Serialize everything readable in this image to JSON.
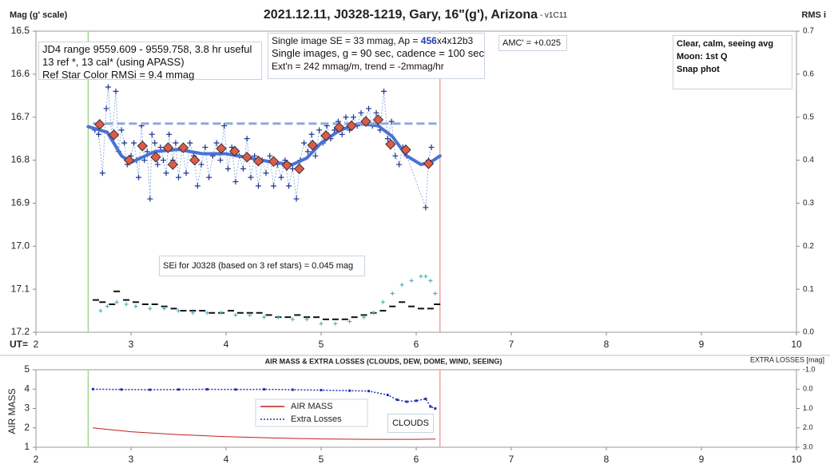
{
  "chart_data": [
    {
      "type": "line",
      "title": "2021.12.11, J0328-1219, Gary, 16\"(g'), Arizona",
      "subtitle": " - v1C11",
      "y_label": "Mag (g' scale)",
      "y2_label": "RMS i",
      "x_label": "UT=",
      "xlim": [
        2,
        10
      ],
      "xticks": [
        2,
        3,
        4,
        5,
        6,
        7,
        8,
        9,
        10
      ],
      "ylim": [
        17.2,
        16.5
      ],
      "yticks": [
        16.5,
        16.6,
        16.7,
        16.8,
        16.9,
        {
          "value": 17,
          "label": "17.0"
        },
        17.1,
        17.2
      ],
      "y2lim": [
        0,
        0.7
      ],
      "y2ticks": [
        0.7,
        0.6,
        0.5,
        0.4,
        0.3,
        0.2,
        0.1,
        {
          "value": 0,
          "label": "0.0"
        }
      ],
      "grid": false,
      "vlines": [
        {
          "x": 2.55,
          "color": "#9fd88f"
        },
        {
          "x": 6.25,
          "color": "#f2a0a0"
        }
      ],
      "notes": {
        "left": [
          "JD4 range 9559.609 - 9559.758, 3.8 hr useful",
          "13 ref *, 13 cal* (using APASS)",
          "Ref Star Color RMSi = 9.4 mmag"
        ],
        "mid_first": [
          "Single image SE = 33 mmag, Ap = ",
          "456",
          "x4x12b3"
        ],
        "mid": [
          "Single images, g = 90 sec, cadence = 100 sec",
          "Ext'n = 242 mmag/m, trend = -2mmag/hr"
        ],
        "amc": "AMC' = +0.025",
        "right": [
          "Clear, calm, seeing avg",
          "Moon: 1st Q",
          "Snap phot"
        ],
        "sei": "SEi for J0328 (based on 3 ref stars) = 0.045 mag"
      },
      "series": [
        {
          "style": "plus",
          "color": "#1f3590",
          "line_color": "#8fb0e0",
          "x": [
            2.62,
            2.66,
            2.7,
            2.74,
            2.76,
            2.8,
            2.84,
            2.87,
            2.9,
            2.93,
            2.96,
            3.0,
            3.03,
            3.06,
            3.08,
            3.11,
            3.14,
            3.17,
            3.2,
            3.22,
            3.25,
            3.28,
            3.31,
            3.34,
            3.37,
            3.4,
            3.44,
            3.47,
            3.5,
            3.54,
            3.58,
            3.62,
            3.66,
            3.7,
            3.74,
            3.78,
            3.82,
            3.86,
            3.9,
            3.94,
            3.98,
            4.02,
            4.06,
            4.1,
            4.14,
            4.18,
            4.22,
            4.26,
            4.3,
            4.34,
            4.38,
            4.42,
            4.46,
            4.5,
            4.54,
            4.58,
            4.62,
            4.66,
            4.7,
            4.74,
            4.78,
            4.82,
            4.86,
            4.9,
            4.94,
            4.98,
            5.02,
            5.06,
            5.1,
            5.14,
            5.18,
            5.22,
            5.26,
            5.3,
            5.34,
            5.38,
            5.42,
            5.46,
            5.5,
            5.54,
            5.58,
            5.62,
            5.66,
            5.7,
            5.74,
            5.78,
            5.82,
            5.86,
            5.9,
            6.1,
            6.13,
            6.16
          ],
          "values": [
            16.73,
            16.74,
            16.83,
            16.68,
            16.63,
            16.75,
            16.64,
            16.78,
            16.73,
            16.76,
            16.81,
            16.79,
            16.76,
            16.8,
            16.84,
            16.72,
            16.8,
            16.78,
            16.89,
            16.74,
            16.76,
            16.81,
            16.77,
            16.8,
            16.83,
            16.74,
            16.8,
            16.76,
            16.84,
            16.77,
            16.83,
            16.76,
            16.79,
            16.86,
            16.81,
            16.77,
            16.84,
            16.79,
            16.76,
            16.8,
            16.72,
            16.82,
            16.77,
            16.85,
            16.79,
            16.82,
            16.75,
            16.84,
            16.79,
            16.86,
            16.8,
            16.83,
            16.79,
            16.86,
            16.81,
            16.84,
            16.8,
            16.86,
            16.82,
            16.89,
            16.8,
            16.76,
            16.78,
            16.74,
            16.79,
            16.73,
            16.76,
            16.72,
            16.75,
            16.73,
            16.71,
            16.74,
            16.7,
            16.73,
            16.7,
            16.72,
            16.69,
            16.71,
            16.68,
            16.72,
            16.69,
            16.73,
            16.64,
            16.75,
            16.71,
            16.79,
            16.81,
            16.77,
            16.79,
            16.91,
            16.8,
            16.77
          ]
        },
        {
          "style": "line",
          "color": "#4a72d4",
          "width": 4,
          "x": [
            2.55,
            2.75,
            2.9,
            3.0,
            3.1,
            3.25,
            3.5,
            3.75,
            4.0,
            4.25,
            4.5,
            4.7,
            4.85,
            5.0,
            5.2,
            5.4,
            5.6,
            5.75,
            5.9,
            6.05,
            6.15,
            6.25
          ],
          "values": [
            16.722,
            16.735,
            16.79,
            16.805,
            16.795,
            16.78,
            16.775,
            16.785,
            16.785,
            16.795,
            16.805,
            16.81,
            16.795,
            16.76,
            16.73,
            16.715,
            16.72,
            16.745,
            16.79,
            16.81,
            16.805,
            16.79
          ]
        },
        {
          "style": "dashed",
          "color": "#8fa8e0",
          "width": 3,
          "x": [
            2.6,
            6.25
          ],
          "values": [
            16.715,
            16.715
          ]
        },
        {
          "style": "diamond",
          "color": "#e05a4a",
          "x": [
            2.67,
            2.82,
            2.98,
            3.12,
            3.26,
            3.39,
            3.44,
            3.55,
            3.67,
            3.95,
            4.09,
            4.22,
            4.34,
            4.5,
            4.64,
            4.77,
            4.91,
            5.05,
            5.19,
            5.32,
            5.47,
            5.6,
            5.73,
            5.89,
            6.13
          ],
          "values": [
            16.717,
            16.741,
            16.8,
            16.767,
            16.793,
            16.771,
            16.81,
            16.771,
            16.8,
            16.773,
            16.779,
            16.793,
            16.802,
            16.803,
            16.812,
            16.82,
            16.765,
            16.743,
            16.724,
            16.72,
            16.71,
            16.706,
            16.763,
            16.776,
            16.808
          ],
          "errors": [
            0.012,
            0.012,
            0.012,
            0.012,
            0.012,
            0.012,
            0.012,
            0.012,
            0.012,
            0.012,
            0.012,
            0.012,
            0.012,
            0.012,
            0.012,
            0.012,
            0.012,
            0.012,
            0.012,
            0.012,
            0.012,
            0.012,
            0.012,
            0.012,
            0.012
          ]
        },
        {
          "style": "dash",
          "color": "#111111",
          "axis": "y2",
          "x": [
            2.63,
            2.7,
            2.8,
            2.85,
            2.95,
            3.05,
            3.15,
            3.25,
            3.35,
            3.45,
            3.55,
            3.65,
            3.75,
            3.85,
            3.95,
            4.05,
            4.15,
            4.25,
            4.35,
            4.45,
            4.55,
            4.65,
            4.75,
            4.85,
            4.95,
            5.05,
            5.15,
            5.25,
            5.35,
            5.45,
            5.55,
            5.65,
            5.75,
            5.85,
            5.95,
            6.05,
            6.15,
            6.22
          ],
          "values": [
            0.075,
            0.07,
            0.065,
            0.095,
            0.075,
            0.07,
            0.065,
            0.065,
            0.06,
            0.055,
            0.05,
            0.05,
            0.05,
            0.045,
            0.045,
            0.05,
            0.045,
            0.045,
            0.045,
            0.04,
            0.035,
            0.035,
            0.04,
            0.035,
            0.035,
            0.03,
            0.03,
            0.03,
            0.035,
            0.04,
            0.045,
            0.05,
            0.06,
            0.07,
            0.06,
            0.055,
            0.055,
            0.065
          ]
        },
        {
          "style": "cross",
          "color": "#3aa8b0",
          "axis": "y2",
          "x": [
            2.68,
            2.75,
            2.85,
            2.95,
            3.05,
            3.2,
            3.35,
            3.5,
            3.65,
            3.8,
            3.95,
            4.1,
            4.25,
            4.4,
            4.55,
            4.7,
            4.85,
            5.0,
            5.15,
            5.3,
            5.45,
            5.55,
            5.65,
            5.75,
            5.85,
            5.95,
            6.05,
            6.1,
            6.15,
            6.2
          ],
          "values": [
            0.05,
            0.06,
            0.07,
            0.065,
            0.06,
            0.055,
            0.055,
            0.05,
            0.045,
            0.045,
            0.045,
            0.04,
            0.04,
            0.035,
            0.035,
            0.03,
            0.03,
            0.02,
            0.02,
            0.025,
            0.035,
            0.045,
            0.07,
            0.09,
            0.11,
            0.12,
            0.13,
            0.13,
            0.12,
            0.09
          ]
        }
      ]
    },
    {
      "type": "line",
      "title": "AIR MASS & EXTRA LOSSES (CLOUDS, DEW, DOME, WIND, SEEING)",
      "y_label": "AIR MASS",
      "y2_label": "EXTRA LOSSES [mag]",
      "annotation": "CLOUDS",
      "xlim": [
        2,
        10
      ],
      "xticks": [
        2,
        3,
        4,
        5,
        6,
        7,
        8,
        9,
        10
      ],
      "ylim": [
        1,
        5
      ],
      "yticks": [
        5,
        4,
        3,
        2,
        1
      ],
      "y2lim": [
        3,
        -1
      ],
      "y2ticks": [
        {
          "value": -1,
          "label": "-1.0"
        },
        {
          "value": 0,
          "label": "0.0"
        },
        {
          "value": 1,
          "label": "1.0"
        },
        {
          "value": 2,
          "label": "2.0"
        },
        {
          "value": 3,
          "label": "3.0"
        }
      ],
      "vlines": [
        {
          "x": 2.55,
          "color": "#9fd88f"
        },
        {
          "x": 6.25,
          "color": "#f2a0a0"
        }
      ],
      "series": [
        {
          "name": "AIR MASS",
          "style": "line",
          "color": "#c0201a",
          "width": 1,
          "x": [
            2.6,
            3.0,
            3.5,
            4.0,
            4.5,
            5.0,
            5.5,
            6.0,
            6.2
          ],
          "values": [
            2.0,
            1.8,
            1.65,
            1.55,
            1.48,
            1.43,
            1.41,
            1.41,
            1.42
          ]
        },
        {
          "name": "Extra Losses",
          "style": "dotted-line",
          "color": "#2030b0",
          "axis": "y2",
          "width": 1.5,
          "x": [
            2.6,
            2.9,
            3.2,
            3.5,
            3.8,
            4.1,
            4.4,
            4.7,
            5.0,
            5.3,
            5.5,
            5.7,
            5.8,
            5.9,
            6.0,
            6.1,
            6.15,
            6.2
          ],
          "values": [
            0.0,
            0.02,
            0.03,
            0.02,
            0.01,
            0.02,
            0.01,
            0.03,
            0.05,
            0.08,
            0.1,
            0.3,
            0.55,
            0.65,
            0.6,
            0.5,
            0.9,
            1.0
          ]
        }
      ]
    }
  ]
}
